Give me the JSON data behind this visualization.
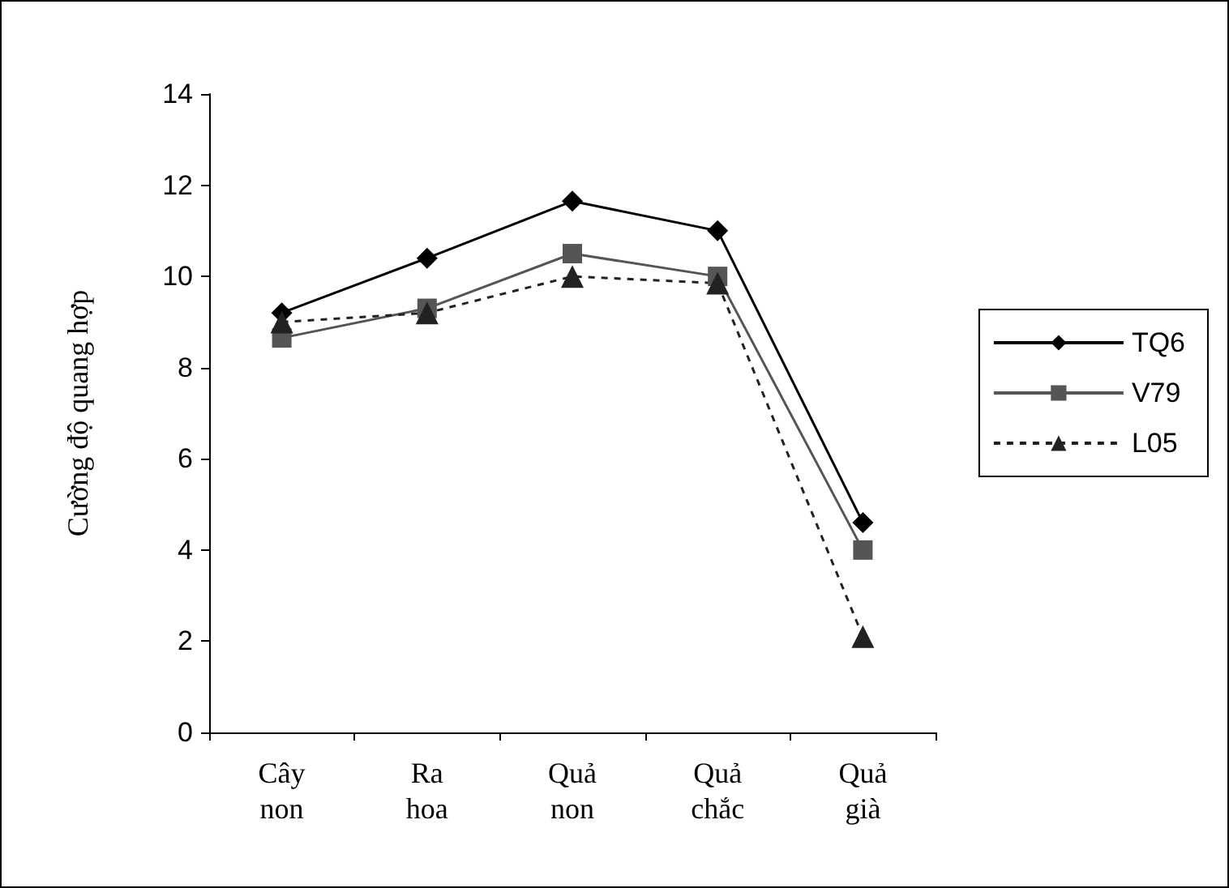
{
  "chart_data": {
    "type": "line",
    "ylabel": "Cường độ quang hợp",
    "categories": [
      "Cây non",
      "Ra hoa",
      "Quả non",
      "Quả chắc",
      "Quả già"
    ],
    "series": [
      {
        "name": "TQ6",
        "color": "#000000",
        "marker": "diamond",
        "line_style": "solid",
        "values": [
          9.2,
          10.4,
          11.65,
          11.0,
          4.6
        ]
      },
      {
        "name": "V79",
        "color": "#555555",
        "marker": "square",
        "line_style": "solid",
        "values": [
          8.65,
          9.3,
          10.5,
          10.0,
          4.0
        ]
      },
      {
        "name": "L05",
        "color": "#222222",
        "marker": "triangle",
        "line_style": "dashed",
        "values": [
          9.0,
          9.2,
          10.0,
          9.85,
          2.1
        ]
      }
    ],
    "ylim": [
      0,
      14
    ],
    "yticks": [
      0,
      2,
      4,
      6,
      8,
      10,
      12,
      14
    ],
    "grid": false,
    "legend": "right"
  }
}
